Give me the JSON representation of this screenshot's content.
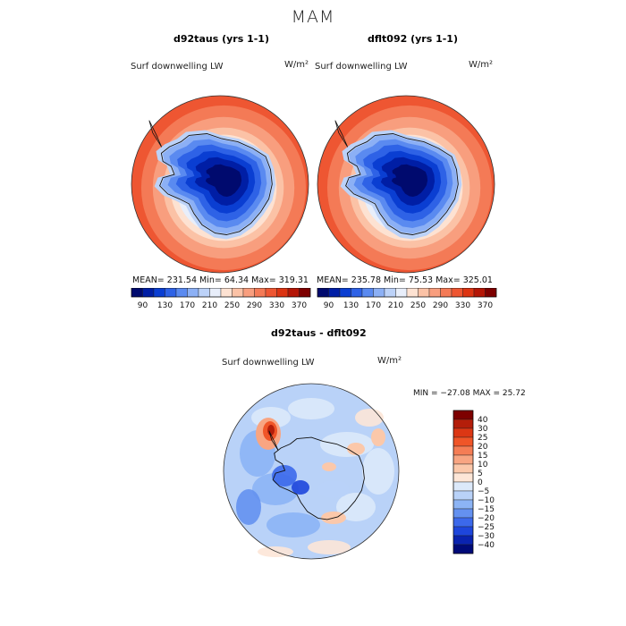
{
  "page": {
    "season": "MAM"
  },
  "colors": {
    "abs_scale": [
      "#000a6e",
      "#001ea5",
      "#0a3ed2",
      "#2e62e6",
      "#5a8af0",
      "#8cb0f5",
      "#bcd2f8",
      "#e8eefa",
      "#fde2d2",
      "#fbc2a6",
      "#f89e7e",
      "#f47a56",
      "#ee5632",
      "#dc3412",
      "#b41606",
      "#7d0000"
    ],
    "diff_scale": [
      "#000a78",
      "#0a23af",
      "#1e46dc",
      "#3c69eb",
      "#6491f0",
      "#8cb4f5",
      "#b9d2f8",
      "#dce9fa",
      "#fde6d7",
      "#fbc8aa",
      "#f8a582",
      "#f57d55",
      "#f05528",
      "#dc3714",
      "#b41e0a",
      "#7d0000"
    ],
    "coast": "#111111"
  },
  "chart_data": [
    {
      "type": "heatmap",
      "title": "d92taus (yrs 1-1)",
      "variable": "Surf downwelling LW",
      "units": "W/m²",
      "projection": "south-polar-stereographic",
      "stats": {
        "mean": 231.54,
        "min": 64.34,
        "max": 319.31
      },
      "stats_text": "MEAN= 231.54   Min=  64.34   Max= 319.31",
      "colorbar": {
        "levels": [
          90,
          130,
          170,
          210,
          250,
          290,
          330,
          370
        ],
        "labels": [
          "90",
          "130",
          "170",
          "210",
          "250",
          "290",
          "330",
          "370"
        ]
      }
    },
    {
      "type": "heatmap",
      "title": "dflt092 (yrs 1-1)",
      "variable": "Surf downwelling LW",
      "units": "W/m²",
      "projection": "south-polar-stereographic",
      "stats": {
        "mean": 235.78,
        "min": 75.53,
        "max": 325.01
      },
      "stats_text": "MEAN= 235.78   Min=  75.53   Max= 325.01",
      "colorbar": {
        "levels": [
          90,
          130,
          170,
          210,
          250,
          290,
          330,
          370
        ],
        "labels": [
          "90",
          "130",
          "170",
          "210",
          "250",
          "290",
          "330",
          "370"
        ]
      }
    },
    {
      "type": "heatmap",
      "title": "d92taus - dflt092",
      "variable": "Surf downwelling LW",
      "units": "W/m²",
      "projection": "south-polar-stereographic",
      "stats": {
        "min": -27.08,
        "max": 25.72
      },
      "minmax_text": "MIN = −27.08 MAX =  25.72",
      "colorbar": {
        "levels": [
          40,
          30,
          25,
          20,
          15,
          10,
          5,
          0,
          -5,
          -10,
          -15,
          -20,
          -25,
          -30,
          -40
        ],
        "labels": [
          "40",
          "30",
          "25",
          "20",
          "15",
          "10",
          "5",
          "0",
          "−5",
          "−10",
          "−15",
          "−20",
          "−25",
          "−30",
          "−40"
        ]
      }
    }
  ]
}
